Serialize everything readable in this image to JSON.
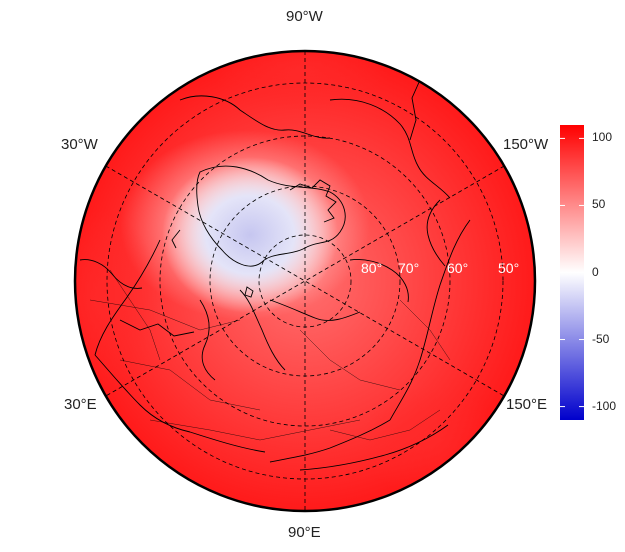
{
  "map": {
    "projection": "north-polar-stereographic",
    "colors": {
      "high": "#ff0000",
      "mid": "#ffffff",
      "low": "#0000cc",
      "border": "#000000",
      "graticule": "#000000",
      "lat_label": "#ffffff"
    },
    "longitude_labels": [
      "90°W",
      "30°W",
      "150°W",
      "30°E",
      "150°E",
      "90°E"
    ],
    "latitude_labels": [
      "80°",
      "70°",
      "60°",
      "50°"
    ]
  },
  "colorbar": {
    "min": -110,
    "max": 110,
    "ticks": [
      "100",
      "50",
      "0",
      "-50",
      "-100"
    ],
    "tick_values": [
      100,
      50,
      0,
      -50,
      -100
    ]
  }
}
